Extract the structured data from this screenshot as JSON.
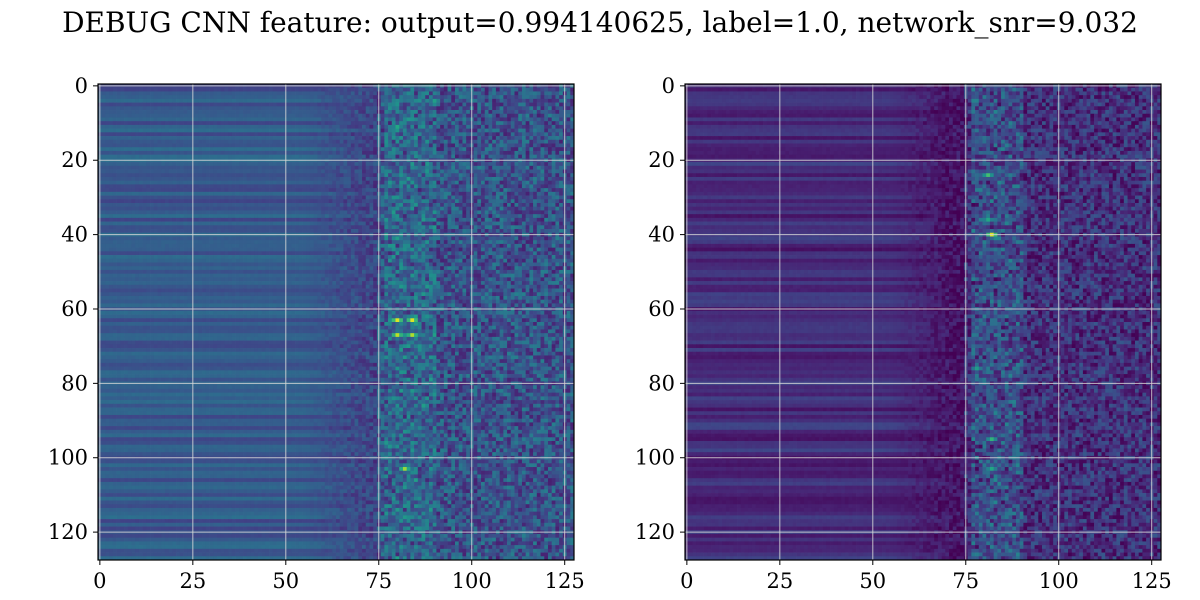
{
  "figure": {
    "title": "DEBUG CNN feature: output=0.994140625, label=1.0, network_snr=9.032"
  },
  "chart_data": [
    {
      "type": "heatmap",
      "panel": "left",
      "colormap": "viridis",
      "rows": 128,
      "cols": 128,
      "xlim": [
        0,
        127
      ],
      "ylim": [
        127,
        0
      ],
      "xticks": [
        "0",
        "25",
        "50",
        "75",
        "100",
        "125"
      ],
      "yticks": [
        "0",
        "20",
        "40",
        "60",
        "80",
        "100",
        "120"
      ],
      "xtick_values": [
        0,
        25,
        50,
        75,
        100,
        125
      ],
      "ytick_values": [
        0,
        20,
        40,
        60,
        80,
        100,
        120
      ],
      "grid": true,
      "value_range": [
        0.0,
        1.0
      ],
      "hotspots": [
        {
          "x": 80,
          "y": 63,
          "value": 0.95
        },
        {
          "x": 84,
          "y": 63,
          "value": 0.95
        },
        {
          "x": 80,
          "y": 67,
          "value": 0.9
        },
        {
          "x": 84,
          "y": 67,
          "value": 0.88
        },
        {
          "x": 82,
          "y": 103,
          "value": 0.85
        },
        {
          "x": 80,
          "y": 11,
          "value": 0.6
        },
        {
          "x": 80,
          "y": 41,
          "value": 0.55
        }
      ]
    },
    {
      "type": "heatmap",
      "panel": "right",
      "colormap": "viridis",
      "rows": 128,
      "cols": 128,
      "xlim": [
        0,
        127
      ],
      "ylim": [
        127,
        0
      ],
      "xticks": [
        "0",
        "25",
        "50",
        "75",
        "100",
        "125"
      ],
      "yticks": [
        "0",
        "20",
        "40",
        "60",
        "80",
        "100",
        "120"
      ],
      "xtick_values": [
        0,
        25,
        50,
        75,
        100,
        125
      ],
      "ytick_values": [
        0,
        20,
        40,
        60,
        80,
        100,
        120
      ],
      "grid": true,
      "value_range": [
        0.0,
        1.0
      ],
      "hotspots": [
        {
          "x": 82,
          "y": 40,
          "value": 0.95
        },
        {
          "x": 81,
          "y": 24,
          "value": 0.7
        },
        {
          "x": 81,
          "y": 36,
          "value": 0.6
        },
        {
          "x": 82,
          "y": 95,
          "value": 0.65
        },
        {
          "x": 82,
          "y": 103,
          "value": 0.6
        },
        {
          "x": 78,
          "y": 76,
          "value": 0.55
        }
      ]
    }
  ]
}
